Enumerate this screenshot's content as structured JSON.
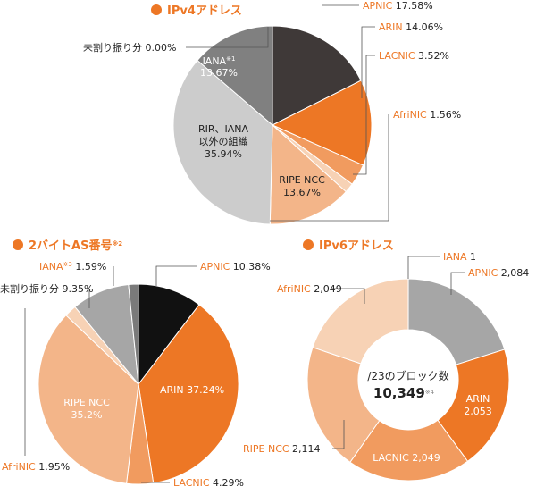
{
  "accent_color": "#ed7725",
  "chart_data": [
    {
      "type": "pie",
      "title": "IPv4アドレス",
      "slices": [
        {
          "key": "apnic",
          "name": "APNIC",
          "value": 17.58,
          "value_label": "17.58%",
          "color": "#3f3938"
        },
        {
          "key": "arin",
          "name": "ARIN",
          "value": 14.06,
          "value_label": "14.06%",
          "color": "#ed7725"
        },
        {
          "key": "lacnic",
          "name": "LACNIC",
          "value": 3.52,
          "value_label": "3.52%",
          "color": "#f19b5f"
        },
        {
          "key": "afrinic",
          "name": "AfriNIC",
          "value": 1.56,
          "value_label": "1.56%",
          "color": "#f7d2b5"
        },
        {
          "key": "ripe",
          "name": "RIPE NCC",
          "value": 13.67,
          "value_label": "13.67%",
          "color": "#f3b589"
        },
        {
          "key": "other",
          "name": "RIR、IANA以外の組織",
          "name_lines": [
            "RIR、IANA",
            "以外の組織"
          ],
          "value": 35.94,
          "value_label": "35.94%",
          "color": "#cccccc"
        },
        {
          "key": "unalloc",
          "name": "未割り振り分",
          "value": 0.0,
          "value_label": "0.00%",
          "color": "#b3b3b3"
        },
        {
          "key": "iana",
          "name": "IANA",
          "note": "※1",
          "value": 13.67,
          "value_label": "13.67%",
          "color": "#808080"
        }
      ]
    },
    {
      "type": "pie",
      "title": "2バイトAS番号",
      "title_note": "※2",
      "slices": [
        {
          "key": "apnic",
          "name": "APNIC",
          "value": 10.38,
          "value_label": "10.38%",
          "color": "#111111"
        },
        {
          "key": "arin",
          "name": "ARIN",
          "value": 37.24,
          "value_label": "37.24%",
          "color": "#ed7725"
        },
        {
          "key": "lacnic",
          "name": "LACNIC",
          "value": 4.29,
          "value_label": "4.29%",
          "color": "#f19b5f"
        },
        {
          "key": "ripe",
          "name": "RIPE NCC",
          "value": 35.2,
          "value_label": "35.2%",
          "color": "#f3b589"
        },
        {
          "key": "afrinic",
          "name": "AfriNIC",
          "value": 1.95,
          "value_label": "1.95%",
          "color": "#f7d2b5"
        },
        {
          "key": "unalloc",
          "name": "未割り振り分",
          "value": 9.35,
          "value_label": "9.35%",
          "color": "#a6a6a6"
        },
        {
          "key": "iana",
          "name": "IANA",
          "note": "※3",
          "value": 1.59,
          "value_label": "1.59%",
          "color": "#7a7a7a"
        }
      ]
    },
    {
      "type": "donut",
      "title": "IPv6アドレス",
      "center_label": "/23のブロック数",
      "center_value": "10,349",
      "center_note": "※4",
      "slices": [
        {
          "key": "iana",
          "name": "IANA",
          "value": 1,
          "value_label": "1",
          "color": "#808080"
        },
        {
          "key": "apnic",
          "name": "APNIC",
          "value": 2084,
          "value_label": "2,084",
          "color": "#a6a6a6"
        },
        {
          "key": "arin",
          "name": "ARIN",
          "value": 2053,
          "value_label": "2,053",
          "color": "#ed7725"
        },
        {
          "key": "lacnic",
          "name": "LACNIC",
          "value": 2049,
          "value_label": "2,049",
          "color": "#f19b5f"
        },
        {
          "key": "ripe",
          "name": "RIPE NCC",
          "value": 2114,
          "value_label": "2,114",
          "color": "#f3b589"
        },
        {
          "key": "afrinic",
          "name": "AfriNIC",
          "value": 2049,
          "value_label": "2,049",
          "color": "#f7d2b5"
        }
      ]
    }
  ]
}
